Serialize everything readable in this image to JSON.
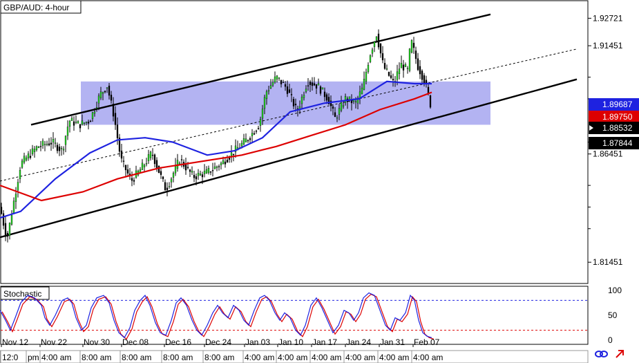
{
  "chart_data": {
    "type": "candlestick",
    "title": "GBP/AUD: 4-hour",
    "price_axis": {
      "ticks": [
        "1.92721",
        "1.91451",
        "1.86451",
        "1.81451"
      ],
      "ylim": [
        1.805,
        1.935
      ],
      "current_labels": [
        {
          "text": "1.89687",
          "bg": "#1e22e0",
          "fg": "#ffffff"
        },
        {
          "text": "1.89750",
          "bg": "#dd0000",
          "fg": "#ffffff"
        },
        {
          "text": "1.88532",
          "bg": "#000000",
          "fg": "#ffffff"
        },
        {
          "text": "1.87844",
          "bg": "#000000",
          "fg": "#ffffff"
        }
      ]
    },
    "date_labels": [
      "Nov 12",
      "Nov 22",
      "Nov 30",
      "Dec 08",
      "Dec 16",
      "Dec 24",
      "Jan 03",
      "Jan 10",
      "Jan 17",
      "Jan 24",
      "Jan 31",
      "Feb 07"
    ],
    "time_labels": [
      "12:0",
      "pm",
      "4:00 am",
      "8:00 am",
      "8:00 am",
      "8:00 am",
      "8:00 am",
      "4:00 am",
      "4:00 am",
      "4:00 am",
      "4:00 am",
      "4:00 am",
      "4:00 am"
    ],
    "price_path": [
      [
        0,
        1.84
      ],
      [
        10,
        1.825
      ],
      [
        30,
        1.86
      ],
      [
        55,
        1.868
      ],
      [
        75,
        1.87
      ],
      [
        90,
        1.866
      ],
      [
        100,
        1.88
      ],
      [
        115,
        1.878
      ],
      [
        130,
        1.88
      ],
      [
        145,
        1.892
      ],
      [
        155,
        1.896
      ],
      [
        165,
        1.882
      ],
      [
        175,
        1.862
      ],
      [
        190,
        1.852
      ],
      [
        205,
        1.858
      ],
      [
        220,
        1.865
      ],
      [
        240,
        1.848
      ],
      [
        260,
        1.862
      ],
      [
        280,
        1.854
      ],
      [
        300,
        1.856
      ],
      [
        320,
        1.86
      ],
      [
        340,
        1.866
      ],
      [
        360,
        1.872
      ],
      [
        375,
        1.878
      ],
      [
        385,
        1.893
      ],
      [
        400,
        1.9
      ],
      [
        415,
        1.895
      ],
      [
        430,
        1.884
      ],
      [
        445,
        1.898
      ],
      [
        460,
        1.896
      ],
      [
        475,
        1.89
      ],
      [
        485,
        1.881
      ],
      [
        500,
        1.89
      ],
      [
        515,
        1.888
      ],
      [
        525,
        1.895
      ],
      [
        535,
        1.91
      ],
      [
        545,
        1.92
      ],
      [
        555,
        1.905
      ],
      [
        570,
        1.897
      ],
      [
        580,
        1.906
      ],
      [
        590,
        1.903
      ],
      [
        595,
        1.917
      ],
      [
        605,
        1.905
      ],
      [
        615,
        1.898
      ],
      [
        625,
        1.885
      ]
    ],
    "series": [
      {
        "name": "blue moving average",
        "color": "#1e22e0",
        "path": [
          [
            0,
            1.835
          ],
          [
            30,
            1.838
          ],
          [
            80,
            1.853
          ],
          [
            130,
            1.865
          ],
          [
            170,
            1.871
          ],
          [
            210,
            1.872
          ],
          [
            250,
            1.87
          ],
          [
            300,
            1.864
          ],
          [
            340,
            1.866
          ],
          [
            380,
            1.872
          ],
          [
            420,
            1.884
          ],
          [
            470,
            1.888
          ],
          [
            520,
            1.89
          ],
          [
            560,
            1.898
          ],
          [
            600,
            1.897
          ],
          [
            625,
            1.897
          ]
        ]
      },
      {
        "name": "red moving average",
        "color": "#dd0000",
        "path": [
          [
            0,
            1.85
          ],
          [
            60,
            1.843
          ],
          [
            120,
            1.847
          ],
          [
            170,
            1.853
          ],
          [
            230,
            1.858
          ],
          [
            290,
            1.861
          ],
          [
            350,
            1.864
          ],
          [
            400,
            1.868
          ],
          [
            450,
            1.873
          ],
          [
            500,
            1.878
          ],
          [
            550,
            1.885
          ],
          [
            600,
            1.89
          ],
          [
            625,
            1.893
          ]
        ]
      }
    ],
    "channel": {
      "upper": [
        [
          45,
          1.878
        ],
        [
          710,
          1.929
        ]
      ],
      "lower": [
        [
          0,
          1.826
        ],
        [
          835,
          1.899
        ]
      ],
      "middle_dashed": [
        [
          0,
          1.852
        ],
        [
          835,
          1.913
        ]
      ]
    },
    "zone": {
      "y_range": [
        1.878,
        1.898
      ],
      "x_range": [
        117,
        710
      ],
      "color": "#9999ee"
    },
    "stochastic": {
      "label": "Stochastic",
      "ticks": [
        "100",
        "50",
        "0"
      ],
      "levels": [
        80,
        20
      ],
      "ylim": [
        0,
        100
      ],
      "k": [
        [
          0,
          60
        ],
        [
          8,
          40
        ],
        [
          15,
          20
        ],
        [
          22,
          45
        ],
        [
          30,
          75
        ],
        [
          40,
          90
        ],
        [
          50,
          85
        ],
        [
          60,
          70
        ],
        [
          65,
          45
        ],
        [
          72,
          30
        ],
        [
          80,
          50
        ],
        [
          90,
          80
        ],
        [
          98,
          85
        ],
        [
          104,
          75
        ],
        [
          110,
          45
        ],
        [
          118,
          20
        ],
        [
          125,
          30
        ],
        [
          132,
          65
        ],
        [
          140,
          85
        ],
        [
          150,
          90
        ],
        [
          158,
          75
        ],
        [
          165,
          40
        ],
        [
          172,
          15
        ],
        [
          180,
          5
        ],
        [
          188,
          25
        ],
        [
          195,
          60
        ],
        [
          203,
          80
        ],
        [
          210,
          90
        ],
        [
          217,
          70
        ],
        [
          225,
          35
        ],
        [
          232,
          15
        ],
        [
          240,
          10
        ],
        [
          248,
          40
        ],
        [
          255,
          75
        ],
        [
          262,
          85
        ],
        [
          270,
          70
        ],
        [
          278,
          40
        ],
        [
          285,
          20
        ],
        [
          292,
          10
        ],
        [
          300,
          30
        ],
        [
          308,
          55
        ],
        [
          315,
          70
        ],
        [
          322,
          55
        ],
        [
          330,
          45
        ],
        [
          338,
          70
        ],
        [
          346,
          60
        ],
        [
          353,
          40
        ],
        [
          360,
          30
        ],
        [
          368,
          60
        ],
        [
          376,
          85
        ],
        [
          383,
          90
        ],
        [
          390,
          80
        ],
        [
          398,
          55
        ],
        [
          405,
          40
        ],
        [
          412,
          55
        ],
        [
          420,
          45
        ],
        [
          428,
          20
        ],
        [
          435,
          10
        ],
        [
          442,
          30
        ],
        [
          450,
          70
        ],
        [
          458,
          85
        ],
        [
          466,
          65
        ],
        [
          474,
          40
        ],
        [
          482,
          15
        ],
        [
          490,
          30
        ],
        [
          498,
          60
        ],
        [
          505,
          55
        ],
        [
          512,
          40
        ],
        [
          519,
          55
        ],
        [
          526,
          85
        ],
        [
          534,
          95
        ],
        [
          542,
          90
        ],
        [
          550,
          60
        ],
        [
          558,
          30
        ],
        [
          565,
          20
        ],
        [
          572,
          45
        ],
        [
          579,
          40
        ],
        [
          587,
          55
        ],
        [
          594,
          90
        ],
        [
          600,
          80
        ],
        [
          606,
          40
        ],
        [
          612,
          15
        ],
        [
          618,
          8
        ],
        [
          625,
          5
        ]
      ]
    },
    "footer_icons": [
      "sync-icon",
      "forward-icon"
    ]
  }
}
